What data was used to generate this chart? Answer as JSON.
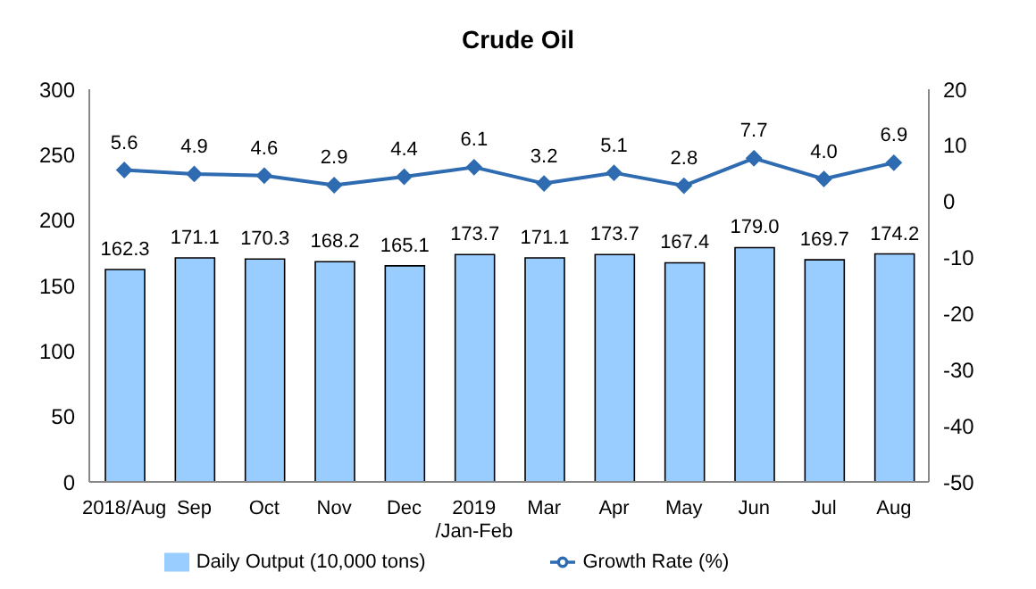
{
  "chart_data": {
    "type": "bar",
    "title": "Crude Oil",
    "categories": [
      "2018/Aug",
      "Sep",
      "Oct",
      "Nov",
      "Dec",
      "2019\n/Jan-Feb",
      "Mar",
      "Apr",
      "May",
      "Jun",
      "Jul",
      "Aug"
    ],
    "series": [
      {
        "name": "Daily Output (10,000 tons)",
        "color": "#99ccff",
        "values": [
          162.3,
          171.1,
          170.3,
          168.2,
          165.1,
          173.7,
          171.1,
          173.7,
          167.4,
          179.0,
          169.7,
          174.2
        ],
        "value_labels": [
          "162.3",
          "171.1",
          "170.3",
          "168.2",
          "165.1",
          "173.7",
          "171.1",
          "173.7",
          "167.4",
          "179.0",
          "169.7",
          "174.2"
        ]
      },
      {
        "name": "Growth Rate (%)",
        "type": "line",
        "axis": "y2",
        "color": "#2e6bb0",
        "values": [
          5.6,
          4.9,
          4.6,
          2.9,
          4.4,
          6.1,
          3.2,
          5.1,
          2.8,
          7.7,
          4.0,
          6.9
        ],
        "value_labels": [
          "5.6",
          "4.9",
          "4.6",
          "2.9",
          "4.4",
          "6.1",
          "3.2",
          "5.1",
          "2.8",
          "7.7",
          "4.0",
          "6.9"
        ]
      }
    ],
    "ylim": [
      0,
      300
    ],
    "yticks": [
      0,
      50,
      100,
      150,
      200,
      250,
      300
    ],
    "y2lim": [
      -50,
      20
    ],
    "y2ticks": [
      -50,
      -40,
      -30,
      -20,
      -10,
      0,
      10,
      20
    ],
    "legend": "bottom",
    "marker": "diamond",
    "line_style": "solid"
  }
}
